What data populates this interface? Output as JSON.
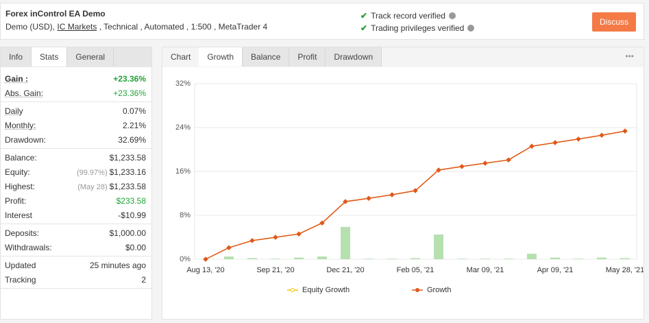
{
  "header": {
    "title": "Forex inControl EA Demo",
    "subtitle_start": "Demo (USD),",
    "broker": "IC Markets",
    "subtitle_end": ", Technical , Automated , 1:500 , MetaTrader 4",
    "verified": [
      "Track record verified",
      "Trading privileges verified"
    ],
    "button": "Discuss"
  },
  "left_tabs": {
    "items": [
      "Info",
      "Stats",
      "General"
    ],
    "active": 1
  },
  "stats": {
    "groups": [
      {
        "rows": [
          {
            "label": "Gain :",
            "value": "+23.36%",
            "color": "#21a337",
            "strong": true
          },
          {
            "label": "Abs. Gain:",
            "value": "+23.36%",
            "color": "#21a337"
          }
        ]
      },
      {
        "rows": [
          {
            "label": "Daily",
            "value": "0.07%"
          },
          {
            "label": "Monthly:",
            "value": "2.21%"
          },
          {
            "label": "Drawdown:",
            "value": "32.69%"
          }
        ]
      },
      {
        "rows": [
          {
            "label": "Balance:",
            "value": "$1,233.58"
          },
          {
            "label": "Equity:",
            "note": "(99.97%)",
            "value": "$1,233.16"
          },
          {
            "label": "Highest:",
            "note": "(May 28)",
            "value": "$1,233.58"
          },
          {
            "label": "Profit:",
            "value": "$233.58",
            "color": "#21a337"
          },
          {
            "label": "Interest",
            "value": "-$10.99"
          }
        ]
      },
      {
        "rows": [
          {
            "label": "Deposits:",
            "value": "$1,000.00"
          },
          {
            "label": "Withdrawals:",
            "value": "$0.00"
          }
        ]
      },
      {
        "rows": [
          {
            "label": "Updated",
            "value": "25 minutes ago"
          },
          {
            "label": "Tracking",
            "value": "2"
          }
        ]
      }
    ]
  },
  "chart_tabs": {
    "label": "Chart",
    "items": [
      "Growth",
      "Balance",
      "Profit",
      "Drawdown"
    ],
    "active": 0,
    "menu": "•••"
  },
  "chart_data": {
    "type": "line",
    "categories": [
      "Aug 13, '20",
      null,
      null,
      "Sep 21, '20",
      null,
      null,
      "Dec 21, '20",
      null,
      null,
      "Feb 05, '21",
      null,
      null,
      "Mar 09, '21",
      null,
      null,
      "Apr 09, '21",
      null,
      null,
      "May 28, '21"
    ],
    "series": [
      {
        "name": "Equity Growth",
        "color": "#f2c200",
        "values": [
          0,
          2.1,
          3.4,
          4.0,
          4.6,
          6.6,
          10.5,
          11.1,
          11.75,
          12.5,
          16.25,
          16.9,
          17.5,
          18.1,
          20.6,
          21.25,
          21.9,
          22.6,
          23.36
        ]
      },
      {
        "name": "Growth",
        "color": "#e0571f",
        "values": [
          0,
          2.1,
          3.4,
          4.0,
          4.6,
          6.6,
          10.5,
          11.1,
          11.75,
          12.5,
          16.25,
          16.9,
          17.5,
          18.1,
          20.6,
          21.25,
          21.9,
          22.6,
          23.36
        ]
      }
    ],
    "bars": {
      "color": "#b6e0b0",
      "values": [
        0,
        0.5,
        0.2,
        0.1,
        0.3,
        0.5,
        5.9,
        0.1,
        0.1,
        0.2,
        4.5,
        0.1,
        0.1,
        0.1,
        1.0,
        0.3,
        0.1,
        0.3,
        0.2
      ]
    },
    "ylim": [
      0,
      32
    ],
    "yticks": [
      {
        "value": 0,
        "label": "0%"
      },
      {
        "value": 8,
        "label": "8%"
      },
      {
        "value": 16,
        "label": "16%"
      },
      {
        "value": 24,
        "label": "24%"
      },
      {
        "value": 32,
        "label": "32%"
      }
    ],
    "grid": true
  }
}
